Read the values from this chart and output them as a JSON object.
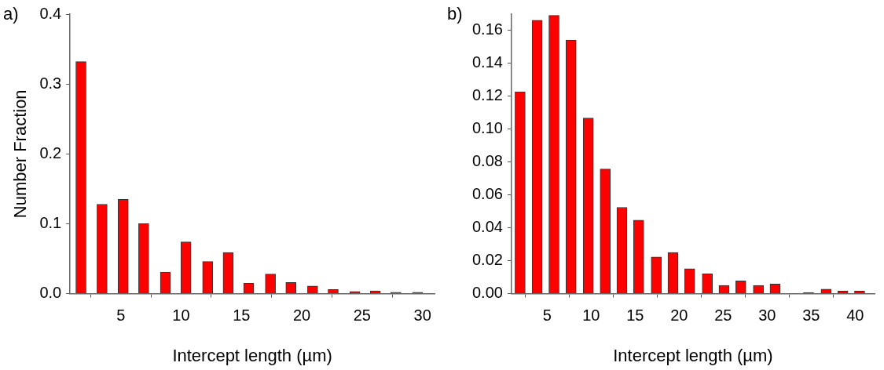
{
  "chart_data": [
    {
      "type": "bar",
      "title": "a)",
      "xlabel": "Intercept length (µm)",
      "ylabel": "Number Fraction",
      "color": "#ff0000",
      "x": [
        1.7,
        3.45,
        5.2,
        6.9,
        8.7,
        10.4,
        12.2,
        13.9,
        15.6,
        17.4,
        19.1,
        20.9,
        22.6,
        24.4,
        26.1,
        27.8,
        29.6
      ],
      "values": [
        0.332,
        0.128,
        0.135,
        0.1,
        0.031,
        0.074,
        0.046,
        0.059,
        0.015,
        0.028,
        0.016,
        0.011,
        0.006,
        0.003,
        0.004,
        0.002,
        0.002
      ],
      "xlim": [
        0.8,
        31
      ],
      "xticks": [
        5,
        10,
        15,
        20,
        25,
        30
      ],
      "ylim": [
        0,
        0.4
      ],
      "yticks": [
        {
          "value": 0,
          "label": "0.0"
        },
        {
          "value": 0.1,
          "label": "0.1"
        },
        {
          "value": 0.2,
          "label": "0.2"
        },
        {
          "value": 0.3,
          "label": "0.3"
        },
        {
          "value": 0.4,
          "label": "0.4"
        }
      ],
      "grid": false,
      "legend": false
    },
    {
      "type": "bar",
      "title": "b)",
      "xlabel": "Intercept length (µm)",
      "color": "#ff0000",
      "x": [
        1.93,
        3.87,
        5.78,
        7.72,
        9.68,
        11.6,
        13.5,
        15.4,
        17.4,
        19.3,
        21.2,
        23.2,
        25.1,
        27.0,
        29.0,
        30.9,
        34.7,
        36.7,
        38.6,
        40.5
      ],
      "values": [
        0.1228,
        0.1663,
        0.1692,
        0.1542,
        0.1068,
        0.0758,
        0.0525,
        0.0447,
        0.0223,
        0.025,
        0.0152,
        0.012,
        0.005,
        0.0077,
        0.005,
        0.0058,
        0.0007,
        0.0027,
        0.0015,
        0.0015
      ],
      "xlim": [
        0.95,
        42.2
      ],
      "xticks": [
        5,
        10,
        15,
        20,
        25,
        30,
        35,
        40
      ],
      "ylim": [
        0,
        0.17
      ],
      "yticks": [
        {
          "value": 0,
          "label": "0.00"
        },
        {
          "value": 0.02,
          "label": "0.02"
        },
        {
          "value": 0.04,
          "label": "0.04"
        },
        {
          "value": 0.06,
          "label": "0.06"
        },
        {
          "value": 0.08,
          "label": "0.08"
        },
        {
          "value": 0.1,
          "label": "0.10"
        },
        {
          "value": 0.12,
          "label": "0.12"
        },
        {
          "value": 0.14,
          "label": "0.14"
        },
        {
          "value": 0.16,
          "label": "0.16"
        }
      ],
      "grid": false,
      "legend": false
    }
  ]
}
